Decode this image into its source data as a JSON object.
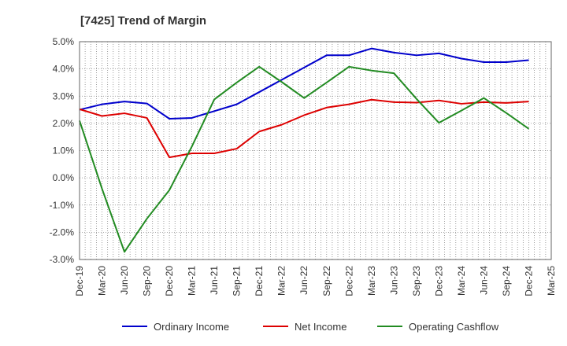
{
  "chart_data": {
    "type": "line",
    "title": "[7425]  Trend of Margin",
    "xlabel": "",
    "ylabel": "",
    "ylim": [
      -3.0,
      5.0
    ],
    "y_ticks": [
      {
        "value": 5.0,
        "label": "5.0%"
      },
      {
        "value": 4.0,
        "label": "4.0%"
      },
      {
        "value": 3.0,
        "label": "3.0%"
      },
      {
        "value": 2.0,
        "label": "2.0%"
      },
      {
        "value": 1.0,
        "label": "1.0%"
      },
      {
        "value": 0.0,
        "label": "0.0%"
      },
      {
        "value": -1.0,
        "label": "-1.0%"
      },
      {
        "value": -2.0,
        "label": "-2.0%"
      },
      {
        "value": -3.0,
        "label": "-3.0%"
      }
    ],
    "x_ticks": [
      "Dec-19",
      "Mar-20",
      "Jun-20",
      "Sep-20",
      "Dec-20",
      "Mar-21",
      "Jun-21",
      "Sep-21",
      "Dec-21",
      "Mar-22",
      "Jun-22",
      "Sep-22",
      "Dec-22",
      "Mar-23",
      "Jun-23",
      "Sep-23",
      "Dec-23",
      "Mar-24",
      "Jun-24",
      "Sep-24",
      "Dec-24",
      "Mar-25"
    ],
    "grid": true,
    "legend_position": "bottom",
    "series": [
      {
        "name": "Ordinary Income",
        "color": "#0000cc",
        "values": [
          2.5,
          2.7,
          2.8,
          2.73,
          2.17,
          2.2,
          2.45,
          2.7,
          3.15,
          3.6,
          4.05,
          4.5,
          4.5,
          4.75,
          4.6,
          4.5,
          4.57,
          4.38,
          4.25,
          4.25,
          4.32
        ]
      },
      {
        "name": "Net Income",
        "color": "#dd0000",
        "values": [
          2.52,
          2.27,
          2.37,
          2.2,
          0.75,
          0.9,
          0.9,
          1.07,
          1.7,
          1.95,
          2.3,
          2.58,
          2.7,
          2.87,
          2.78,
          2.76,
          2.84,
          2.72,
          2.78,
          2.75,
          2.8
        ]
      },
      {
        "name": "Operating Cashflow",
        "color": "#228b22",
        "values": [
          2.1,
          -0.4,
          -2.72,
          -1.5,
          -0.45,
          1.15,
          2.88,
          3.5,
          4.08,
          3.52,
          2.93,
          3.5,
          4.08,
          3.94,
          3.84,
          2.9,
          2.02,
          2.47,
          2.93,
          2.38,
          1.8
        ]
      }
    ]
  }
}
